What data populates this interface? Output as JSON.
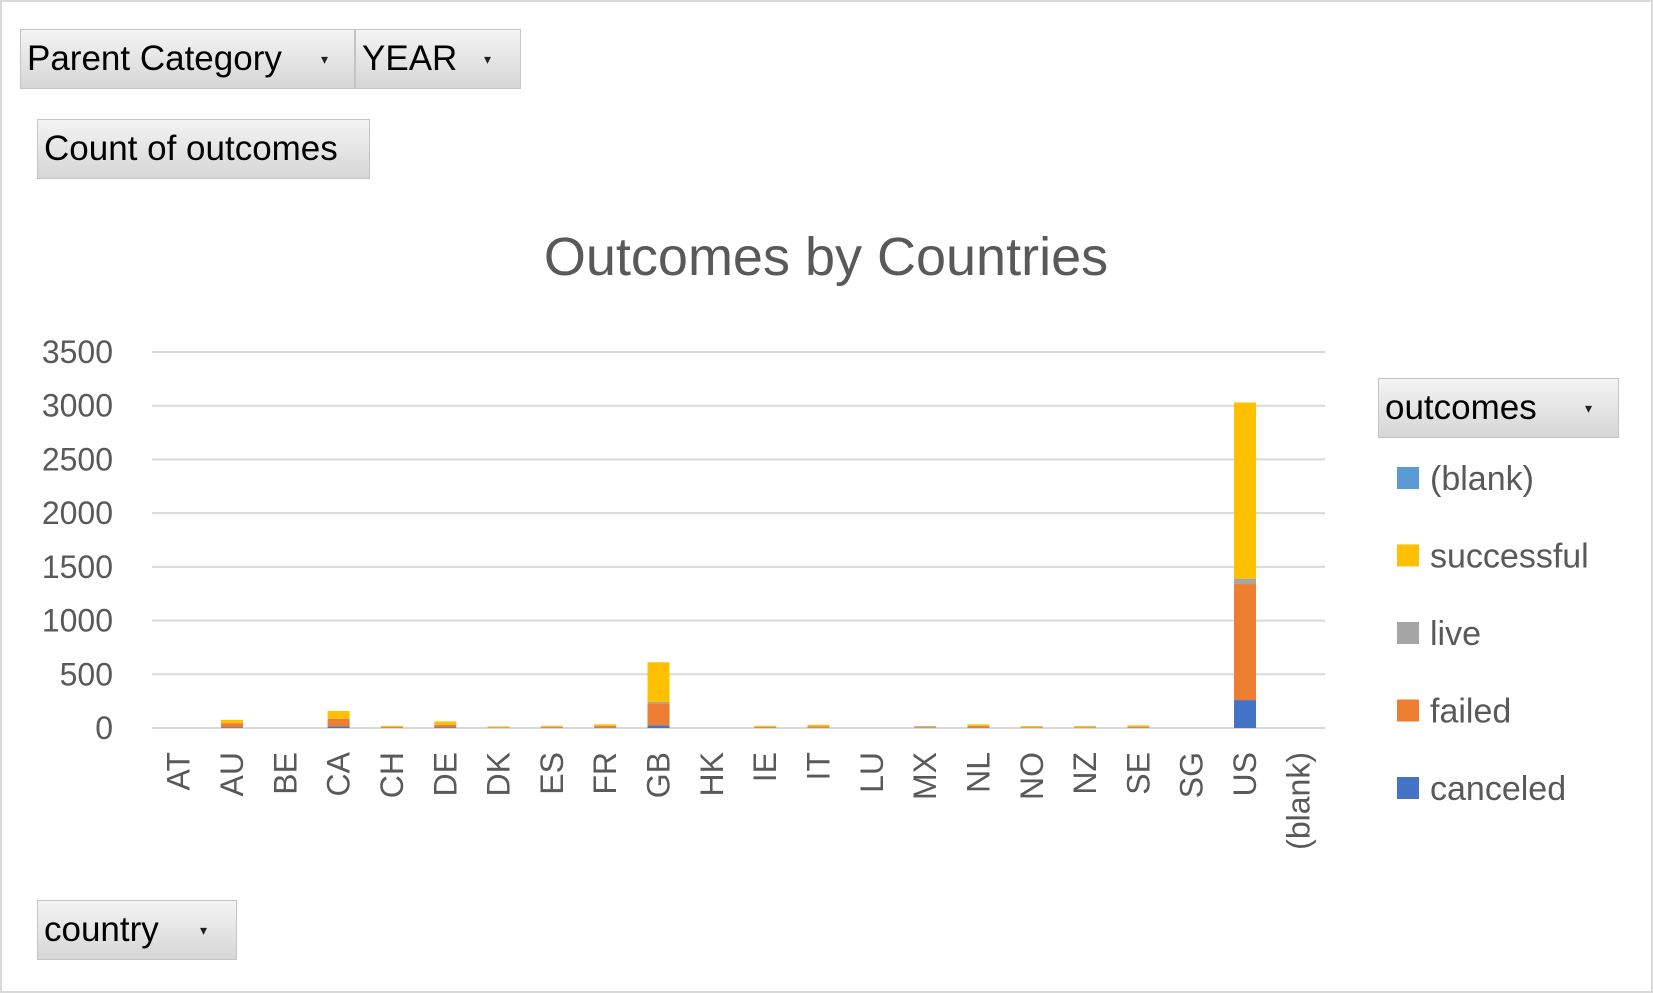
{
  "filters": {
    "parent_category": {
      "label": "Parent Category"
    },
    "year": {
      "label": "YEAR"
    }
  },
  "values_field": {
    "label": "Count of outcomes"
  },
  "axis_field": {
    "label": "country"
  },
  "legend_field": {
    "label": "outcomes"
  },
  "icons": {
    "dropdown": "dropdown-arrow-icon"
  },
  "chart_data": {
    "type": "bar",
    "stacked": true,
    "title": "Outcomes by Countries",
    "xlabel": "",
    "ylabel": "",
    "ylim": [
      0,
      3500
    ],
    "yticks": [
      0,
      500,
      1000,
      1500,
      2000,
      2500,
      3000,
      3500
    ],
    "grid": true,
    "legend_position": "right",
    "categories": [
      "AT",
      "AU",
      "BE",
      "CA",
      "CH",
      "DE",
      "DK",
      "ES",
      "FR",
      "GB",
      "HK",
      "IE",
      "IT",
      "LU",
      "MX",
      "NL",
      "NO",
      "NZ",
      "SE",
      "SG",
      "US",
      "(blank)"
    ],
    "series": [
      {
        "name": "canceled",
        "color": "#4472C4",
        "values": [
          0,
          5,
          0,
          15,
          1,
          5,
          1,
          2,
          3,
          25,
          0,
          2,
          2,
          0,
          1,
          3,
          1,
          1,
          2,
          0,
          260,
          0
        ]
      },
      {
        "name": "failed",
        "color": "#ED7D31",
        "values": [
          0,
          40,
          0,
          70,
          8,
          25,
          5,
          8,
          15,
          205,
          0,
          8,
          12,
          0,
          4,
          15,
          6,
          6,
          10,
          0,
          1080,
          0
        ]
      },
      {
        "name": "live",
        "color": "#A5A5A5",
        "values": [
          0,
          1,
          0,
          3,
          1,
          1,
          1,
          1,
          1,
          12,
          0,
          1,
          1,
          0,
          10,
          1,
          1,
          1,
          1,
          0,
          50,
          0
        ]
      },
      {
        "name": "successful",
        "color": "#FFC000",
        "values": [
          0,
          30,
          0,
          70,
          10,
          30,
          8,
          10,
          15,
          370,
          0,
          10,
          15,
          0,
          4,
          15,
          10,
          10,
          12,
          0,
          1640,
          0
        ]
      },
      {
        "name": "(blank)",
        "color": "#5B9BD5",
        "values": [
          0,
          0,
          0,
          0,
          0,
          0,
          0,
          0,
          0,
          0,
          0,
          0,
          0,
          0,
          0,
          0,
          0,
          0,
          0,
          0,
          0,
          0
        ]
      }
    ],
    "legend_order": [
      "(blank)",
      "successful",
      "live",
      "failed",
      "canceled"
    ]
  }
}
